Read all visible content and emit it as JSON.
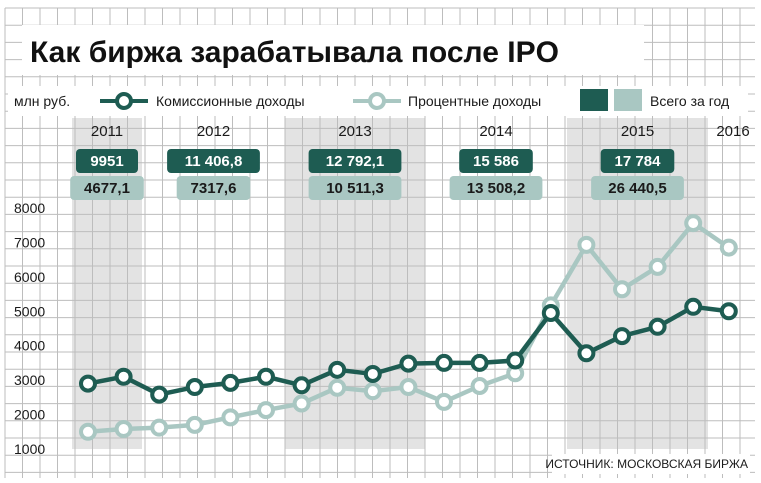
{
  "title": "Как биржа зарабатывала после IPO",
  "unit": "млн руб.",
  "source": "ИСТОЧНИК: МОСКОВСКАЯ БИРЖА",
  "colors": {
    "commission": "#1e5c52",
    "interest": "#a9c7c2",
    "shade": "#e3e3e3",
    "grid": "#bdbdbd"
  },
  "legend": {
    "commission_label": "Комиссионные доходы",
    "interest_label": "Процентные доходы",
    "total_label": "Всего за год"
  },
  "chart_data": {
    "type": "line",
    "title": "Как биржа зарабатывала после IPO",
    "ylabel": "млн руб.",
    "ylim": [
      1000,
      8000
    ],
    "yticks": [
      1000,
      2000,
      3000,
      4000,
      5000,
      6000,
      7000,
      8000
    ],
    "grid": true,
    "legend_position": "top",
    "x_note": "quarterly points from 2011 to 2016",
    "series": [
      {
        "name": "Комиссионные доходы",
        "values": [
          2900,
          3100,
          2580,
          2800,
          2920,
          3100,
          2850,
          3300,
          3180,
          3480,
          3500,
          3500,
          3570,
          4950,
          3780,
          4280,
          4550,
          5130,
          5000
        ]
      },
      {
        "name": "Процентные доходы",
        "values": [
          1500,
          1580,
          1620,
          1700,
          1920,
          2130,
          2320,
          2780,
          2680,
          2800,
          2370,
          2830,
          3200,
          5170,
          6930,
          5640,
          6290,
          7560,
          6850
        ]
      }
    ],
    "annual_totals": [
      {
        "year": "2011",
        "commission": "9951",
        "interest": "4677,1"
      },
      {
        "year": "2012",
        "commission": "11 406,8",
        "interest": "7317,6"
      },
      {
        "year": "2013",
        "commission": "12 792,1",
        "interest": "10 511,3"
      },
      {
        "year": "2014",
        "commission": "15 586",
        "interest": "13 508,2"
      },
      {
        "year": "2015",
        "commission": "17 784",
        "interest": "26 440,5"
      },
      {
        "year": "2016"
      }
    ]
  }
}
